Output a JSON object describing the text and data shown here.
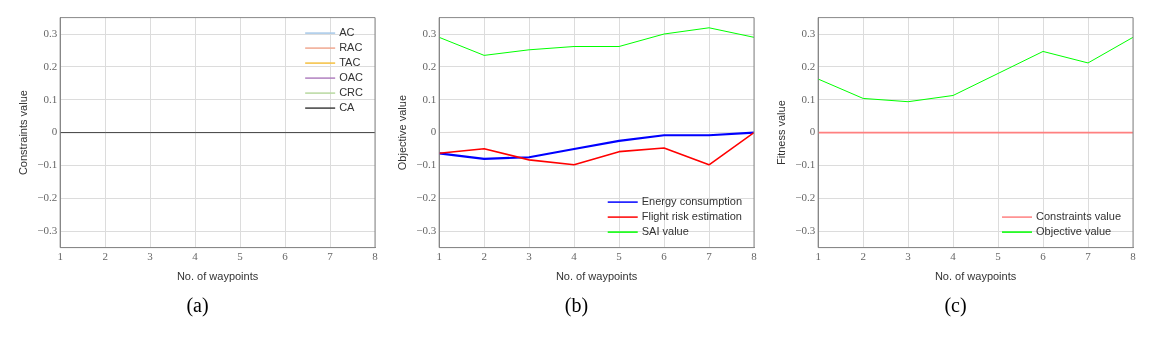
{
  "chart_data": [
    {
      "type": "line",
      "xlabel": "No. of waypoints",
      "ylabel": "Constraints value",
      "x": [
        1,
        2,
        3,
        4,
        5,
        6,
        7,
        8
      ],
      "xlim": [
        1,
        8
      ],
      "xticks": [
        1,
        2,
        3,
        4,
        5,
        6,
        7,
        8
      ],
      "ylim": [
        -0.35,
        0.35
      ],
      "yticks": [
        {
          "value": -0.3,
          "label": "−0.3"
        },
        {
          "value": -0.2,
          "label": "−0.2"
        },
        {
          "value": -0.1,
          "label": "−0.1"
        },
        0,
        0.1,
        0.2,
        0.3
      ],
      "grid": true,
      "legend": "top right",
      "marker": "none",
      "line_style": "solid",
      "annotations": [
        "(a)"
      ],
      "series": [
        {
          "name": "AC",
          "color": "#a6c8e8",
          "values": [
            null,
            null,
            null,
            null,
            null,
            null,
            null,
            null
          ]
        },
        {
          "name": "RAC",
          "color": "#f0a890",
          "values": [
            null,
            null,
            null,
            null,
            null,
            null,
            null,
            null
          ]
        },
        {
          "name": "TAC",
          "color": "#f5c040",
          "values": [
            null,
            null,
            null,
            null,
            null,
            null,
            null,
            null
          ]
        },
        {
          "name": "OAC",
          "color": "#b080c0",
          "values": [
            null,
            null,
            null,
            null,
            null,
            null,
            null,
            null
          ]
        },
        {
          "name": "CRC",
          "color": "#b8d8a0",
          "values": [
            null,
            null,
            null,
            null,
            null,
            null,
            null,
            null
          ]
        },
        {
          "name": "CA",
          "color": "#404040",
          "values": [
            0,
            0,
            0,
            0,
            0,
            0,
            0,
            0
          ]
        }
      ]
    },
    {
      "type": "line",
      "xlabel": "No. of waypoints",
      "ylabel": "Objective value",
      "x": [
        1,
        2,
        3,
        4,
        5,
        6,
        7,
        8
      ],
      "xlim": [
        1,
        8
      ],
      "xticks": [
        1,
        2,
        3,
        4,
        5,
        6,
        7,
        8
      ],
      "ylim": [
        -0.35,
        0.35
      ],
      "yticks": [
        {
          "value": -0.3,
          "label": "−0.3"
        },
        {
          "value": -0.2,
          "label": "−0.2"
        },
        {
          "value": -0.1,
          "label": "−0.1"
        },
        0,
        0.1,
        0.2,
        0.3
      ],
      "grid": true,
      "legend": "bottom right",
      "marker": "none",
      "line_style": "solid",
      "annotations": [
        "(b)"
      ],
      "series": [
        {
          "name": "Energy consumption",
          "color": "#0000ff",
          "values": [
            -0.063,
            -0.08,
            -0.075,
            -0.05,
            -0.025,
            -0.008,
            -0.008,
            0
          ]
        },
        {
          "name": "Flight risk estimation",
          "color": "#ff0000",
          "values": [
            -0.063,
            -0.049,
            -0.083,
            -0.098,
            -0.058,
            -0.047,
            -0.098,
            0
          ]
        },
        {
          "name": "SAI value",
          "color": "#00ff00",
          "values": [
            0.29,
            0.235,
            0.252,
            0.262,
            0.262,
            0.3,
            0.319,
            0.29
          ]
        }
      ]
    },
    {
      "type": "line",
      "xlabel": "No. of waypoints",
      "ylabel": "Fitness value",
      "x": [
        1,
        2,
        3,
        4,
        5,
        6,
        7,
        8
      ],
      "xlim": [
        1,
        8
      ],
      "xticks": [
        1,
        2,
        3,
        4,
        5,
        6,
        7,
        8
      ],
      "ylim": [
        -0.35,
        0.35
      ],
      "yticks": [
        {
          "value": -0.3,
          "label": "−0.3"
        },
        {
          "value": -0.2,
          "label": "−0.2"
        },
        {
          "value": -0.1,
          "label": "−0.1"
        },
        0,
        0.1,
        0.2,
        0.3
      ],
      "grid": true,
      "legend": "bottom right",
      "marker": "none",
      "line_style": "solid",
      "annotations": [
        "(c)"
      ],
      "series": [
        {
          "name": "Constraints value",
          "color": "#ff8080",
          "values": [
            0,
            0,
            0,
            0,
            0,
            0,
            0,
            0
          ]
        },
        {
          "name": "Objective value",
          "color": "#00ff00",
          "values": [
            0.163,
            0.104,
            0.094,
            0.113,
            0.18,
            0.247,
            0.212,
            0.29
          ]
        }
      ]
    }
  ]
}
